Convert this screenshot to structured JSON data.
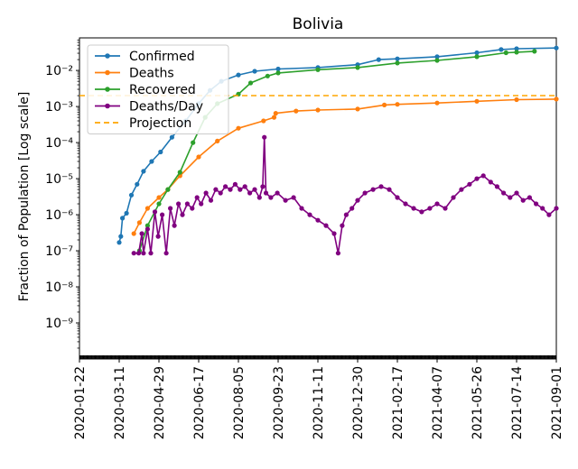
{
  "chart_data": {
    "type": "line",
    "title": "Bolivia",
    "ylabel": "Fraction of Population [Log scale]",
    "xlabel": "",
    "yscale": "log",
    "ylim": [
      1e-10,
      0.08
    ],
    "xlim": [
      "2020-01-22",
      "2021-09-01"
    ],
    "x_ticks": [
      "2020-01-22",
      "2020-03-11",
      "2020-04-29",
      "2020-06-17",
      "2020-08-05",
      "2020-09-23",
      "2020-11-11",
      "2020-12-30",
      "2021-02-17",
      "2021-04-07",
      "2021-05-26",
      "2021-07-14",
      "2021-09-01"
    ],
    "y_ticks": [
      {
        "value": 1e-09,
        "label": "10⁻⁹"
      },
      {
        "value": 1e-08,
        "label": "10⁻⁸"
      },
      {
        "value": 1e-07,
        "label": "10⁻⁷"
      },
      {
        "value": 1e-06,
        "label": "10⁻⁶"
      },
      {
        "value": 1e-05,
        "label": "10⁻⁵"
      },
      {
        "value": 0.0001,
        "label": "10⁻⁴"
      },
      {
        "value": 0.001,
        "label": "10⁻³"
      },
      {
        "value": 0.01,
        "label": "10⁻²"
      }
    ],
    "legend_position": "top-left",
    "series": [
      {
        "name": "Confirmed",
        "color": "#1f77b4",
        "points": [
          [
            "2020-03-11",
            1.7e-07
          ],
          [
            "2020-03-13",
            2.5e-07
          ],
          [
            "2020-03-15",
            8e-07
          ],
          [
            "2020-03-20",
            1.1e-06
          ],
          [
            "2020-03-26",
            3.5e-06
          ],
          [
            "2020-04-02",
            7e-06
          ],
          [
            "2020-04-10",
            1.6e-05
          ],
          [
            "2020-04-20",
            3e-05
          ],
          [
            "2020-05-01",
            5.5e-05
          ],
          [
            "2020-05-15",
            0.00014
          ],
          [
            "2020-06-01",
            0.0004
          ],
          [
            "2020-06-17",
            0.0012
          ],
          [
            "2020-07-01",
            0.0028
          ],
          [
            "2020-07-15",
            0.005
          ],
          [
            "2020-08-05",
            0.0075
          ],
          [
            "2020-08-25",
            0.0095
          ],
          [
            "2020-09-23",
            0.011
          ],
          [
            "2020-11-11",
            0.012
          ],
          [
            "2020-12-30",
            0.0145
          ],
          [
            "2021-01-25",
            0.02
          ],
          [
            "2021-02-17",
            0.021
          ],
          [
            "2021-04-07",
            0.024
          ],
          [
            "2021-05-26",
            0.031
          ],
          [
            "2021-06-25",
            0.038
          ],
          [
            "2021-07-14",
            0.04
          ],
          [
            "2021-09-01",
            0.042
          ]
        ]
      },
      {
        "name": "Deaths",
        "color": "#ff7f0e",
        "points": [
          [
            "2020-03-29",
            3e-07
          ],
          [
            "2020-04-05",
            6e-07
          ],
          [
            "2020-04-15",
            1.5e-06
          ],
          [
            "2020-04-29",
            3e-06
          ],
          [
            "2020-05-10",
            5e-06
          ],
          [
            "2020-05-25",
            1.2e-05
          ],
          [
            "2020-06-17",
            4e-05
          ],
          [
            "2020-07-10",
            0.00011
          ],
          [
            "2020-08-05",
            0.00025
          ],
          [
            "2020-09-05",
            0.0004
          ],
          [
            "2020-09-18",
            0.0005
          ],
          [
            "2020-09-20",
            0.00065
          ],
          [
            "2020-10-15",
            0.00075
          ],
          [
            "2020-11-11",
            0.0008
          ],
          [
            "2020-12-30",
            0.00085
          ],
          [
            "2021-02-01",
            0.0011
          ],
          [
            "2021-02-17",
            0.00115
          ],
          [
            "2021-04-07",
            0.00125
          ],
          [
            "2021-05-26",
            0.0014
          ],
          [
            "2021-07-14",
            0.00155
          ],
          [
            "2021-09-01",
            0.0016
          ]
        ]
      },
      {
        "name": "Recovered",
        "color": "#2ca02c",
        "points": [
          [
            "2020-04-05",
            1e-07
          ],
          [
            "2020-04-15",
            5e-07
          ],
          [
            "2020-04-29",
            2e-06
          ],
          [
            "2020-05-10",
            5e-06
          ],
          [
            "2020-05-25",
            1.5e-05
          ],
          [
            "2020-06-10",
            0.0001
          ],
          [
            "2020-06-25",
            0.0005
          ],
          [
            "2020-07-10",
            0.0012
          ],
          [
            "2020-08-05",
            0.0022
          ],
          [
            "2020-08-20",
            0.0045
          ],
          [
            "2020-09-10",
            0.007
          ],
          [
            "2020-09-23",
            0.0085
          ],
          [
            "2020-11-11",
            0.0105
          ],
          [
            "2020-12-30",
            0.012
          ],
          [
            "2021-02-17",
            0.016
          ],
          [
            "2021-04-07",
            0.019
          ],
          [
            "2021-05-26",
            0.024
          ],
          [
            "2021-07-01",
            0.031
          ],
          [
            "2021-07-14",
            0.032
          ],
          [
            "2021-08-05",
            0.034
          ]
        ]
      },
      {
        "name": "Deaths/Day",
        "color": "#800080",
        "points": [
          [
            "2020-03-29",
            8.6e-08
          ],
          [
            "2020-04-04",
            8.6e-08
          ],
          [
            "2020-04-08",
            3e-07
          ],
          [
            "2020-04-10",
            8.6e-08
          ],
          [
            "2020-04-15",
            4e-07
          ],
          [
            "2020-04-19",
            8.6e-08
          ],
          [
            "2020-04-24",
            1.2e-06
          ],
          [
            "2020-04-28",
            2.5e-07
          ],
          [
            "2020-05-03",
            1e-06
          ],
          [
            "2020-05-08",
            8.6e-08
          ],
          [
            "2020-05-13",
            1.5e-06
          ],
          [
            "2020-05-18",
            5e-07
          ],
          [
            "2020-05-23",
            2e-06
          ],
          [
            "2020-05-28",
            1e-06
          ],
          [
            "2020-06-03",
            2e-06
          ],
          [
            "2020-06-09",
            1.5e-06
          ],
          [
            "2020-06-15",
            3e-06
          ],
          [
            "2020-06-20",
            2e-06
          ],
          [
            "2020-06-26",
            4e-06
          ],
          [
            "2020-07-02",
            2.5e-06
          ],
          [
            "2020-07-08",
            5e-06
          ],
          [
            "2020-07-14",
            4e-06
          ],
          [
            "2020-07-20",
            6e-06
          ],
          [
            "2020-07-26",
            5e-06
          ],
          [
            "2020-08-01",
            7e-06
          ],
          [
            "2020-08-07",
            5e-06
          ],
          [
            "2020-08-13",
            6e-06
          ],
          [
            "2020-08-19",
            4e-06
          ],
          [
            "2020-08-25",
            5e-06
          ],
          [
            "2020-08-31",
            3e-06
          ],
          [
            "2020-09-04",
            6e-06
          ],
          [
            "2020-09-06",
            0.00014
          ],
          [
            "2020-09-08",
            4e-06
          ],
          [
            "2020-09-14",
            3e-06
          ],
          [
            "2020-09-22",
            4e-06
          ],
          [
            "2020-10-02",
            2.5e-06
          ],
          [
            "2020-10-12",
            3e-06
          ],
          [
            "2020-10-22",
            1.5e-06
          ],
          [
            "2020-11-01",
            1e-06
          ],
          [
            "2020-11-11",
            7e-07
          ],
          [
            "2020-11-21",
            5e-07
          ],
          [
            "2020-12-01",
            3e-07
          ],
          [
            "2020-12-06",
            8.6e-08
          ],
          [
            "2020-12-11",
            5e-07
          ],
          [
            "2020-12-16",
            1e-06
          ],
          [
            "2020-12-23",
            1.5e-06
          ],
          [
            "2020-12-30",
            2.5e-06
          ],
          [
            "2021-01-08",
            4e-06
          ],
          [
            "2021-01-18",
            5e-06
          ],
          [
            "2021-01-28",
            6e-06
          ],
          [
            "2021-02-07",
            5e-06
          ],
          [
            "2021-02-17",
            3e-06
          ],
          [
            "2021-02-27",
            2e-06
          ],
          [
            "2021-03-09",
            1.5e-06
          ],
          [
            "2021-03-19",
            1.2e-06
          ],
          [
            "2021-03-29",
            1.5e-06
          ],
          [
            "2021-04-07",
            2e-06
          ],
          [
            "2021-04-17",
            1.5e-06
          ],
          [
            "2021-04-27",
            3e-06
          ],
          [
            "2021-05-07",
            5e-06
          ],
          [
            "2021-05-17",
            7e-06
          ],
          [
            "2021-05-26",
            1e-05
          ],
          [
            "2021-06-03",
            1.2e-05
          ],
          [
            "2021-06-12",
            8e-06
          ],
          [
            "2021-06-20",
            6e-06
          ],
          [
            "2021-06-28",
            4e-06
          ],
          [
            "2021-07-06",
            3e-06
          ],
          [
            "2021-07-14",
            4e-06
          ],
          [
            "2021-07-22",
            2.5e-06
          ],
          [
            "2021-07-30",
            3e-06
          ],
          [
            "2021-08-07",
            2e-06
          ],
          [
            "2021-08-15",
            1.5e-06
          ],
          [
            "2021-08-23",
            1e-06
          ],
          [
            "2021-09-01",
            1.5e-06
          ]
        ]
      },
      {
        "name": "Projection",
        "color": "#ffa500",
        "style": "dashed",
        "constant": 0.002
      }
    ]
  }
}
